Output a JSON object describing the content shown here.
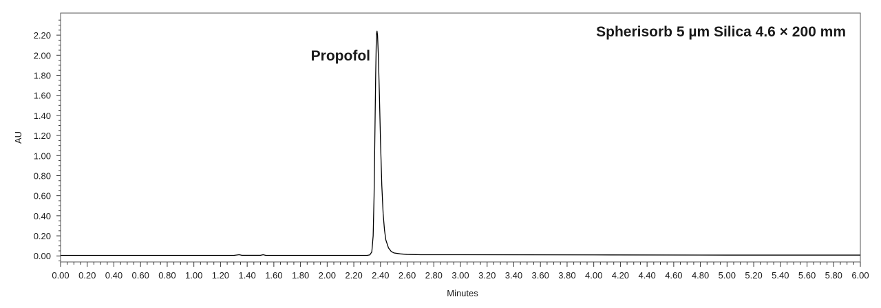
{
  "chart_data": {
    "type": "line",
    "title": "Spherisorb 5 µm Silica 4.6 × 200 mm",
    "xlabel": "Minutes",
    "ylabel": "AU",
    "xlim": [
      0.0,
      6.0
    ],
    "ylim": [
      -0.06,
      2.42
    ],
    "x_major_ticks": [
      "0.00",
      "0.20",
      "0.40",
      "0.60",
      "0.80",
      "1.00",
      "1.20",
      "1.40",
      "1.60",
      "1.80",
      "2.00",
      "2.20",
      "2.40",
      "2.60",
      "2.80",
      "3.00",
      "3.20",
      "3.40",
      "3.60",
      "3.80",
      "4.00",
      "4.20",
      "4.40",
      "4.60",
      "4.80",
      "5.00",
      "5.20",
      "5.40",
      "5.60",
      "5.80",
      "6.00"
    ],
    "y_major_ticks": [
      "0.00",
      "0.20",
      "0.40",
      "0.60",
      "0.80",
      "1.00",
      "1.20",
      "1.40",
      "1.60",
      "1.80",
      "2.00",
      "2.20"
    ],
    "grid": false,
    "legend": "none",
    "annotations": [
      {
        "text": "Propofol",
        "x": 2.36,
        "y": 1.95
      }
    ],
    "series": [
      {
        "color": "#000000",
        "points": [
          [
            0.0,
            0.005
          ],
          [
            1.3,
            0.005
          ],
          [
            1.34,
            0.012
          ],
          [
            1.36,
            0.006
          ],
          [
            1.5,
            0.006
          ],
          [
            1.52,
            0.012
          ],
          [
            1.54,
            0.005
          ],
          [
            2.3,
            0.005
          ],
          [
            2.32,
            0.01
          ],
          [
            2.335,
            0.04
          ],
          [
            2.345,
            0.2
          ],
          [
            2.352,
            0.6
          ],
          [
            2.358,
            1.2
          ],
          [
            2.364,
            1.8
          ],
          [
            2.368,
            2.1
          ],
          [
            2.371,
            2.22
          ],
          [
            2.374,
            2.24
          ],
          [
            2.378,
            2.2
          ],
          [
            2.384,
            2.0
          ],
          [
            2.392,
            1.6
          ],
          [
            2.4,
            1.15
          ],
          [
            2.41,
            0.7
          ],
          [
            2.42,
            0.42
          ],
          [
            2.43,
            0.26
          ],
          [
            2.44,
            0.16
          ],
          [
            2.46,
            0.08
          ],
          [
            2.48,
            0.045
          ],
          [
            2.5,
            0.03
          ],
          [
            2.55,
            0.02
          ],
          [
            2.6,
            0.015
          ],
          [
            2.7,
            0.012
          ],
          [
            3.0,
            0.012
          ],
          [
            4.0,
            0.01
          ],
          [
            5.0,
            0.008
          ],
          [
            6.0,
            0.008
          ]
        ]
      }
    ]
  }
}
